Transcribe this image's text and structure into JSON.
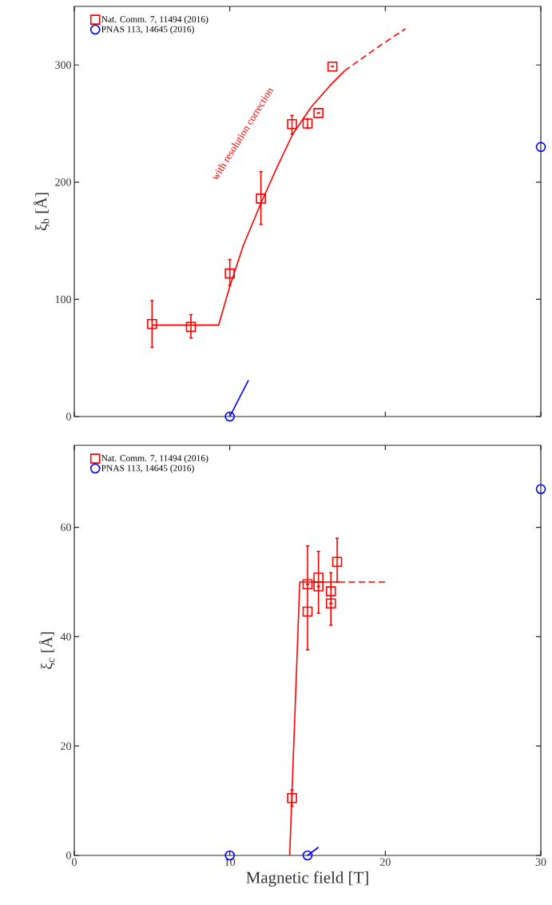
{
  "chart_data": [
    {
      "type": "scatter",
      "ylabel": "ξ$_{b}$ [Å]",
      "xlim": [
        0,
        30
      ],
      "ylim": [
        0,
        350
      ],
      "xticks": [
        0,
        10,
        20,
        30
      ],
      "yticks": [
        0,
        100,
        200,
        300
      ],
      "tick_labels": "y",
      "legend": "top left",
      "grid": false,
      "annotations": [
        "with resolution correction"
      ],
      "series": [
        {
          "type": "scatter",
          "name": "Nat. Comm. 7, 11494 (2016)",
          "color": "#ff0000",
          "marker": "square",
          "x": [
            5,
            7.5,
            10,
            12,
            14,
            15,
            15.7,
            16.6
          ],
          "values": [
            79,
            76.5,
            122,
            186,
            249.5,
            250,
            259,
            298.6
          ],
          "errors": [
            [
              59,
              99
            ],
            [
              67,
              87
            ],
            [
              112,
              134
            ],
            [
              164,
              209
            ],
            [
              241,
              257
            ],
            [
              246,
              254
            ],
            null,
            null
          ]
        },
        {
          "type": "scatter",
          "name": "PNAS 113, 14645 (2016)",
          "color": "#0000ff",
          "marker": "circle",
          "x": [
            10,
            30
          ],
          "values": [
            0,
            230
          ]
        },
        {
          "type": "line",
          "color": "#ff0000",
          "line_style": "solid",
          "x": [
            5,
            9.28,
            10,
            10.87,
            12,
            13.08,
            14.05,
            15.23,
            16.41,
            17.38
          ],
          "values": [
            78,
            78,
            111,
            146,
            182,
            214,
            241,
            264,
            282,
            295
          ]
        },
        {
          "type": "line",
          "color": "#ff0000",
          "line_style": "dashed",
          "x": [
            17.38,
            19.6,
            21.3
          ],
          "values": [
            295,
            316,
            331
          ]
        },
        {
          "type": "line",
          "color": "#0000ff",
          "line_style": "solid",
          "x": [
            10,
            11.2
          ],
          "values": [
            0,
            31
          ]
        }
      ]
    },
    {
      "type": "scatter",
      "xlabel": "Magnetic field [T]",
      "ylabel": "ξ$_{c}$ [Å]",
      "xlim": [
        0,
        30
      ],
      "ylim": [
        0,
        75
      ],
      "xticks": [
        0,
        10,
        20,
        30
      ],
      "yticks": [
        0,
        20,
        40,
        60
      ],
      "legend": "top left",
      "grid": false,
      "series": [
        {
          "type": "scatter",
          "name": "Nat. Comm. 7, 11494 (2016)",
          "color": "#ff0000",
          "marker": "square",
          "x": [
            14,
            15,
            15,
            15.7,
            15.7,
            16.5,
            16.5,
            16.9
          ],
          "values": [
            10.5,
            44.6,
            49.6,
            50.8,
            49.2,
            48.3,
            46.1,
            53.7
          ],
          "errors": [
            [
              9,
              12
            ],
            [
              37.6,
              56.6
            ],
            null,
            [
              44.3,
              55.6
            ],
            null,
            [
              42.1,
              51.7
            ],
            null,
            [
              50,
              58
            ]
          ]
        },
        {
          "type": "scatter",
          "name": "PNAS 113, 14645 (2016)",
          "color": "#0000ff",
          "marker": "circle",
          "x": [
            10,
            15,
            30
          ],
          "values": [
            0,
            0,
            67
          ]
        },
        {
          "type": "line",
          "color": "#ff0000",
          "line_style": "solid",
          "x": [
            13.85,
            14.5,
            17
          ],
          "values": [
            0,
            50,
            50
          ]
        },
        {
          "type": "line",
          "color": "#ff0000",
          "line_style": "dashed",
          "x": [
            17,
            20
          ],
          "values": [
            50,
            50
          ]
        },
        {
          "type": "line",
          "color": "#0000ff",
          "line_style": "solid",
          "x": [
            15,
            15.7
          ],
          "values": [
            0,
            1.5
          ]
        }
      ]
    }
  ]
}
